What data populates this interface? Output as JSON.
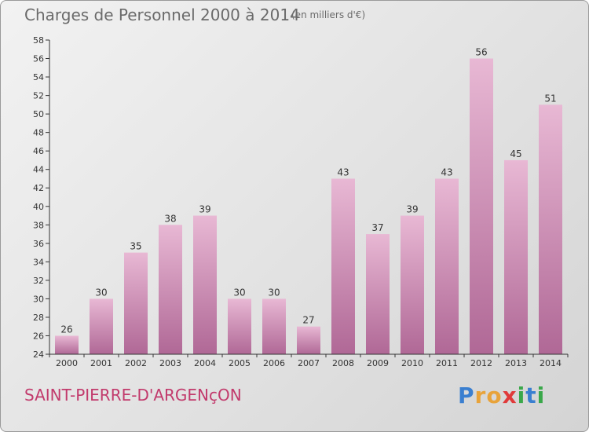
{
  "title": "Charges de Personnel 2000 à 2014",
  "subtitle": "(en milliers d'€)",
  "commune": "SAINT-PIERRE-D'ARGENçON",
  "brand": {
    "letters": [
      "P",
      "r",
      "o",
      "x",
      "i",
      "t",
      "i"
    ],
    "colors": [
      "#3a7fd0",
      "#e8a33a",
      "#e8a33a",
      "#e03a3a",
      "#3aa84a",
      "#3a7fd0",
      "#3aa84a"
    ]
  },
  "colors": {
    "bar_light": "#e8b8d4",
    "bar_dark": "#b06896",
    "axis": "#333333"
  },
  "chart_data": {
    "type": "bar",
    "categories": [
      "2000",
      "2001",
      "2002",
      "2003",
      "2004",
      "2005",
      "2006",
      "2007",
      "2008",
      "2009",
      "2010",
      "2011",
      "2012",
      "2013",
      "2014"
    ],
    "values": [
      26,
      30,
      35,
      38,
      39,
      30,
      30,
      27,
      43,
      37,
      39,
      43,
      56,
      45,
      51
    ],
    "ylim": [
      24,
      58
    ],
    "yticks": [
      24,
      26,
      28,
      30,
      32,
      34,
      36,
      38,
      40,
      42,
      44,
      46,
      48,
      50,
      52,
      54,
      56,
      58
    ],
    "grid": false,
    "title": "Charges de Personnel 2000 à 2014",
    "xlabel": "",
    "ylabel": ""
  }
}
